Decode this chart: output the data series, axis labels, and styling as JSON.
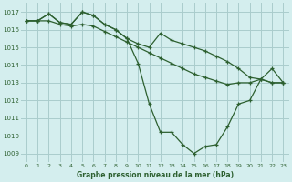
{
  "background_color": "#d4eeee",
  "grid_color": "#aacccc",
  "line_color": "#2d6030",
  "xlabel": "Graphe pression niveau de la mer (hPa)",
  "ylim": [
    1008.5,
    1017.5
  ],
  "xlim": [
    -0.5,
    23.5
  ],
  "yticks": [
    1009,
    1010,
    1011,
    1012,
    1013,
    1014,
    1015,
    1016,
    1017
  ],
  "xticks": [
    0,
    1,
    2,
    3,
    4,
    5,
    6,
    7,
    8,
    9,
    10,
    11,
    12,
    13,
    14,
    15,
    16,
    17,
    18,
    19,
    20,
    21,
    22,
    23
  ],
  "series1": [
    1016.5,
    1016.5,
    1016.5,
    1016.3,
    1016.2,
    1016.3,
    1016.2,
    1015.9,
    1015.6,
    1015.3,
    1015.0,
    1014.7,
    1014.4,
    1014.1,
    1013.8,
    1013.5,
    1013.3,
    1013.1,
    1012.9,
    1013.0,
    1013.0,
    1013.2,
    1013.0,
    1013.0
  ],
  "series2": [
    1016.5,
    1016.5,
    1016.9,
    1016.4,
    1016.3,
    1017.0,
    1016.8,
    1016.3,
    1016.0,
    1015.5,
    1015.2,
    1015.0,
    1015.8,
    1015.4,
    1015.2,
    1015.0,
    1014.8,
    1014.5,
    1014.2,
    1013.8,
    1013.3,
    1013.2,
    1013.0,
    1013.0
  ],
  "series3": [
    1016.5,
    1016.5,
    1016.9,
    1016.4,
    1016.3,
    1017.0,
    1016.8,
    1016.3,
    1016.0,
    1015.5,
    1014.1,
    1011.8,
    1010.2,
    1010.2,
    1009.5,
    1009.0,
    1009.4,
    1009.5,
    1010.5,
    1011.8,
    1012.0,
    1013.2,
    1013.8,
    1013.0
  ]
}
